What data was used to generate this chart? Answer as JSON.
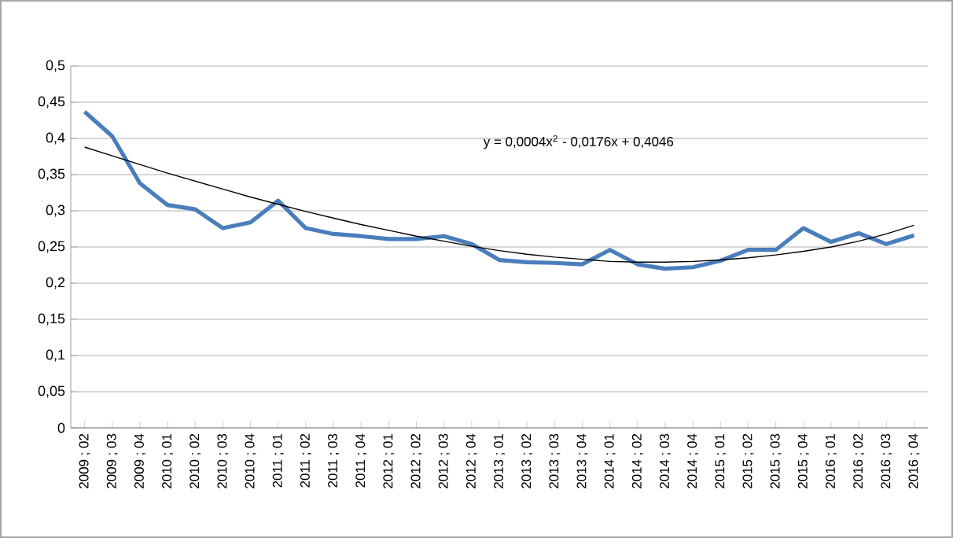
{
  "chart_data": {
    "type": "line",
    "categories": [
      "2009 ; 02",
      "2009 ; 03",
      "2009 ; 04",
      "2010 ; 01",
      "2010 ; 02",
      "2010 ; 03",
      "2010 ; 04",
      "2011 ; 01",
      "2011 ; 02",
      "2011 ; 03",
      "2011 ; 04",
      "2012 ; 01",
      "2012 ; 02",
      "2012 ; 03",
      "2012 ; 04",
      "2013 ; 01",
      "2013 ; 02",
      "2013 ; 03",
      "2013 ; 04",
      "2014 ; 01",
      "2014 ; 02",
      "2014 ; 03",
      "2014 ; 04",
      "2015 ; 01",
      "2015 ; 02",
      "2015 ; 03",
      "2015 ; 04",
      "2016 ; 01",
      "2016 ; 02",
      "2016 ; 03",
      "2016 ; 04"
    ],
    "series": [
      {
        "color": "#4a7ebb",
        "line_style": "solid",
        "values": [
          0.437,
          0.403,
          0.338,
          0.308,
          0.302,
          0.276,
          0.284,
          0.314,
          0.276,
          0.268,
          0.265,
          0.261,
          0.261,
          0.265,
          0.254,
          0.232,
          0.229,
          0.228,
          0.226,
          0.246,
          0.226,
          0.22,
          0.222,
          0.231,
          0.246,
          0.246,
          0.276,
          0.257,
          0.269,
          0.254,
          0.266
        ]
      },
      {
        "color": "#000000",
        "line_style": "solid",
        "values": [
          0.388,
          0.376,
          0.364,
          0.352,
          0.341,
          0.33,
          0.319,
          0.309,
          0.299,
          0.29,
          0.281,
          0.273,
          0.265,
          0.258,
          0.251,
          0.245,
          0.24,
          0.236,
          0.233,
          0.23,
          0.229,
          0.229,
          0.23,
          0.232,
          0.235,
          0.239,
          0.244,
          0.25,
          0.258,
          0.268,
          0.28
        ]
      }
    ],
    "ylim": [
      0,
      0.5
    ],
    "yticks": [
      0,
      {
        "value": 0.05,
        "label": "0,05"
      },
      {
        "value": 0.1,
        "label": "0,1"
      },
      {
        "value": 0.15,
        "label": "0,15"
      },
      {
        "value": 0.2,
        "label": "0,2"
      },
      {
        "value": 0.25,
        "label": "0,25"
      },
      {
        "value": 0.3,
        "label": "0,3"
      },
      {
        "value": 0.35,
        "label": "0,35"
      },
      {
        "value": 0.4,
        "label": "0,4"
      },
      {
        "value": 0.45,
        "label": "0,45"
      },
      {
        "value": 0.5,
        "label": "0,5"
      }
    ],
    "grid": "y",
    "marker": "none",
    "annotations": [
      "y = 0,0004x$^{2}$ - 0,0176x + 0,4046"
    ]
  }
}
